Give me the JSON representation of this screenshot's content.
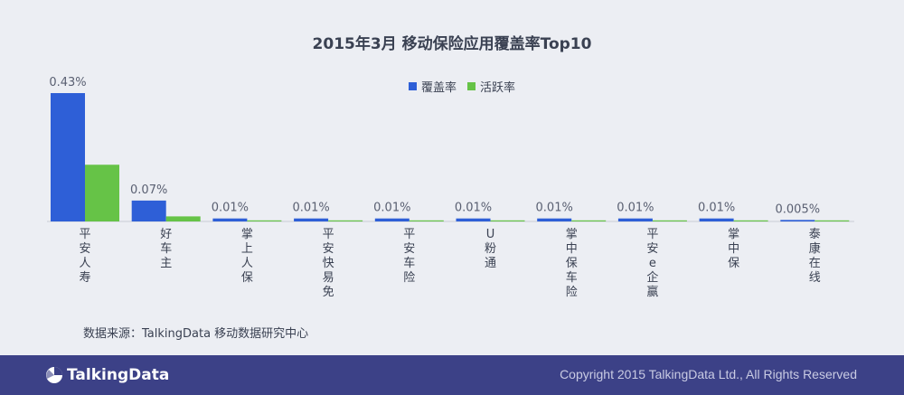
{
  "chart_data": {
    "type": "bar",
    "title": "2015年3月 移动保险应用覆盖率Top10",
    "categories": [
      "平安人寿",
      "好车主",
      "掌上人保",
      "平安快易免",
      "平安车险",
      "U粉通",
      "掌中保车险",
      "平安e企赢",
      "掌中保",
      "泰康在线"
    ],
    "value_labels": [
      "0.43%",
      "0.07%",
      "0.01%",
      "0.01%",
      "0.01%",
      "0.01%",
      "0.01%",
      "0.01%",
      "0.01%",
      "0.005%"
    ],
    "series": [
      {
        "name": "覆盖率",
        "color": "#2e5fd7",
        "values": [
          0.43,
          0.07,
          0.01,
          0.01,
          0.01,
          0.01,
          0.01,
          0.01,
          0.01,
          0.005
        ]
      },
      {
        "name": "活跃率",
        "color": "#66c347",
        "values": [
          0.19,
          0.017,
          0.001,
          0.001,
          0.001,
          0.001,
          0.001,
          0.001,
          0.001,
          0.0005
        ]
      }
    ],
    "ylim": [
      0,
      0.43
    ],
    "legend_position": "top-center",
    "grid": false
  },
  "source_text": "数据来源：TalkingData 移动数据研究中心",
  "footer": {
    "logo_text": "TalkingData",
    "copyright": "Copyright 2015 TalkingData Ltd., All Rights Reserved"
  }
}
